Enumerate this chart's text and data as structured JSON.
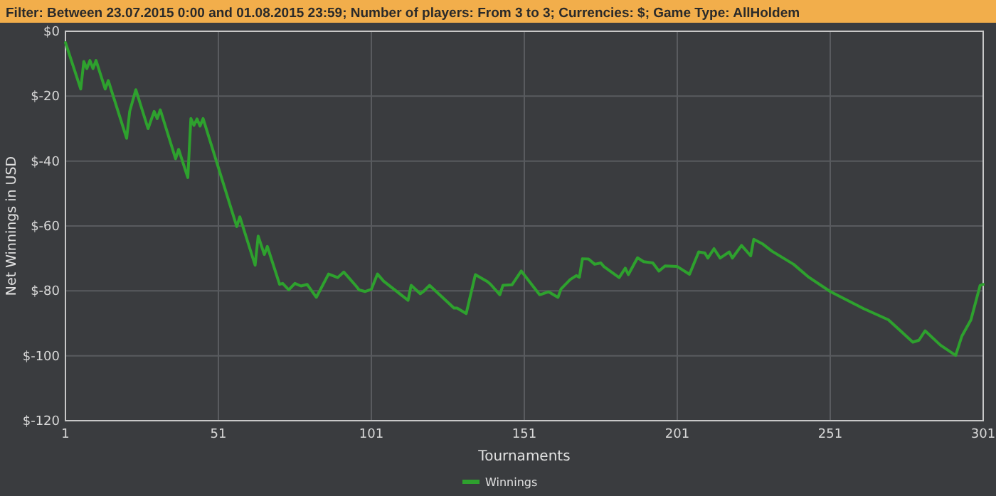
{
  "chart_data": {
    "type": "line",
    "title": "Filter: Between 23.07.2015 0:00 and 01.08.2015 23:59; Number of players: From 3 to 3; Currencies: $; Game Type: AllHoldem",
    "xlabel": "Tournaments",
    "ylabel": "Net Winnings in USD",
    "x": [
      1,
      6,
      7,
      8,
      9,
      10,
      11,
      14,
      15,
      21,
      22,
      24,
      28,
      30,
      31,
      32,
      37,
      38,
      41,
      42,
      43,
      44,
      45,
      46,
      57,
      58,
      63,
      64,
      66,
      67,
      71,
      72,
      74,
      76,
      78,
      80,
      83,
      87,
      90,
      92,
      96,
      97,
      99,
      101,
      103,
      105,
      113,
      114,
      117,
      118,
      120,
      128,
      129,
      132,
      135,
      139,
      140,
      143,
      144,
      147,
      150,
      156,
      159,
      162,
      163,
      166,
      168,
      169,
      170,
      172,
      174,
      176,
      177,
      182,
      184,
      185,
      188,
      190,
      193,
      195,
      197,
      201,
      205,
      208,
      210,
      211,
      213,
      215,
      218,
      219,
      222,
      225,
      226,
      229,
      232,
      239,
      244,
      251,
      257,
      262,
      270,
      278,
      280,
      282,
      287,
      292,
      294,
      297,
      300,
      301
    ],
    "series": [
      {
        "name": "Winnings",
        "color": "#2ea12e",
        "values": [
          -3.5,
          -17.8,
          -9.3,
          -11.5,
          -9,
          -11.5,
          -9,
          -17.8,
          -15.2,
          -33,
          -24.7,
          -18,
          -30,
          -24.7,
          -26.9,
          -24.2,
          -39.3,
          -36.4,
          -45.1,
          -26.9,
          -29,
          -27,
          -29.2,
          -26.9,
          -60.2,
          -57.2,
          -72.1,
          -63.1,
          -68.8,
          -66.3,
          -78,
          -77.7,
          -79.7,
          -77.7,
          -78.5,
          -78,
          -82,
          -74.8,
          -75.9,
          -74.2,
          -78.5,
          -79.7,
          -80.2,
          -79.5,
          -74.8,
          -77,
          -82.9,
          -78.3,
          -80.9,
          -80.2,
          -78.3,
          -85.3,
          -85.3,
          -87,
          -75,
          -77.2,
          -78,
          -81.2,
          -78.3,
          -78.1,
          -73.9,
          -81.2,
          -80.3,
          -82,
          -79.4,
          -76.5,
          -75.3,
          -75.8,
          -70.1,
          -70.2,
          -71.8,
          -71.4,
          -72.5,
          -75.9,
          -73,
          -75,
          -69.8,
          -71,
          -71.4,
          -73.9,
          -72.3,
          -72.5,
          -74.9,
          -68,
          -68.3,
          -69.9,
          -67,
          -69.9,
          -68,
          -69.9,
          -66,
          -69.2,
          -64.1,
          -65.6,
          -67.8,
          -71.8,
          -75.8,
          -80.2,
          -83.1,
          -85.5,
          -88.9,
          -95.8,
          -95.2,
          -92.3,
          -96.7,
          -99.9,
          -94,
          -88.9,
          -78.3,
          -78
        ]
      }
    ],
    "xlim": [
      1,
      301
    ],
    "xticks": [
      1,
      51,
      101,
      151,
      201,
      251,
      301
    ],
    "ylim": [
      -120,
      0
    ],
    "yticks": [
      {
        "value": 0,
        "label": "$0"
      },
      {
        "value": -20,
        "label": "$-20"
      },
      {
        "value": -40,
        "label": "$-40"
      },
      {
        "value": -60,
        "label": "$-60"
      },
      {
        "value": -80,
        "label": "$-80"
      },
      {
        "value": -100,
        "label": "$-100"
      },
      {
        "value": -120,
        "label": "$-120"
      }
    ],
    "grid": true,
    "legend": "bottom",
    "line_style": "solid",
    "marker": "none"
  }
}
